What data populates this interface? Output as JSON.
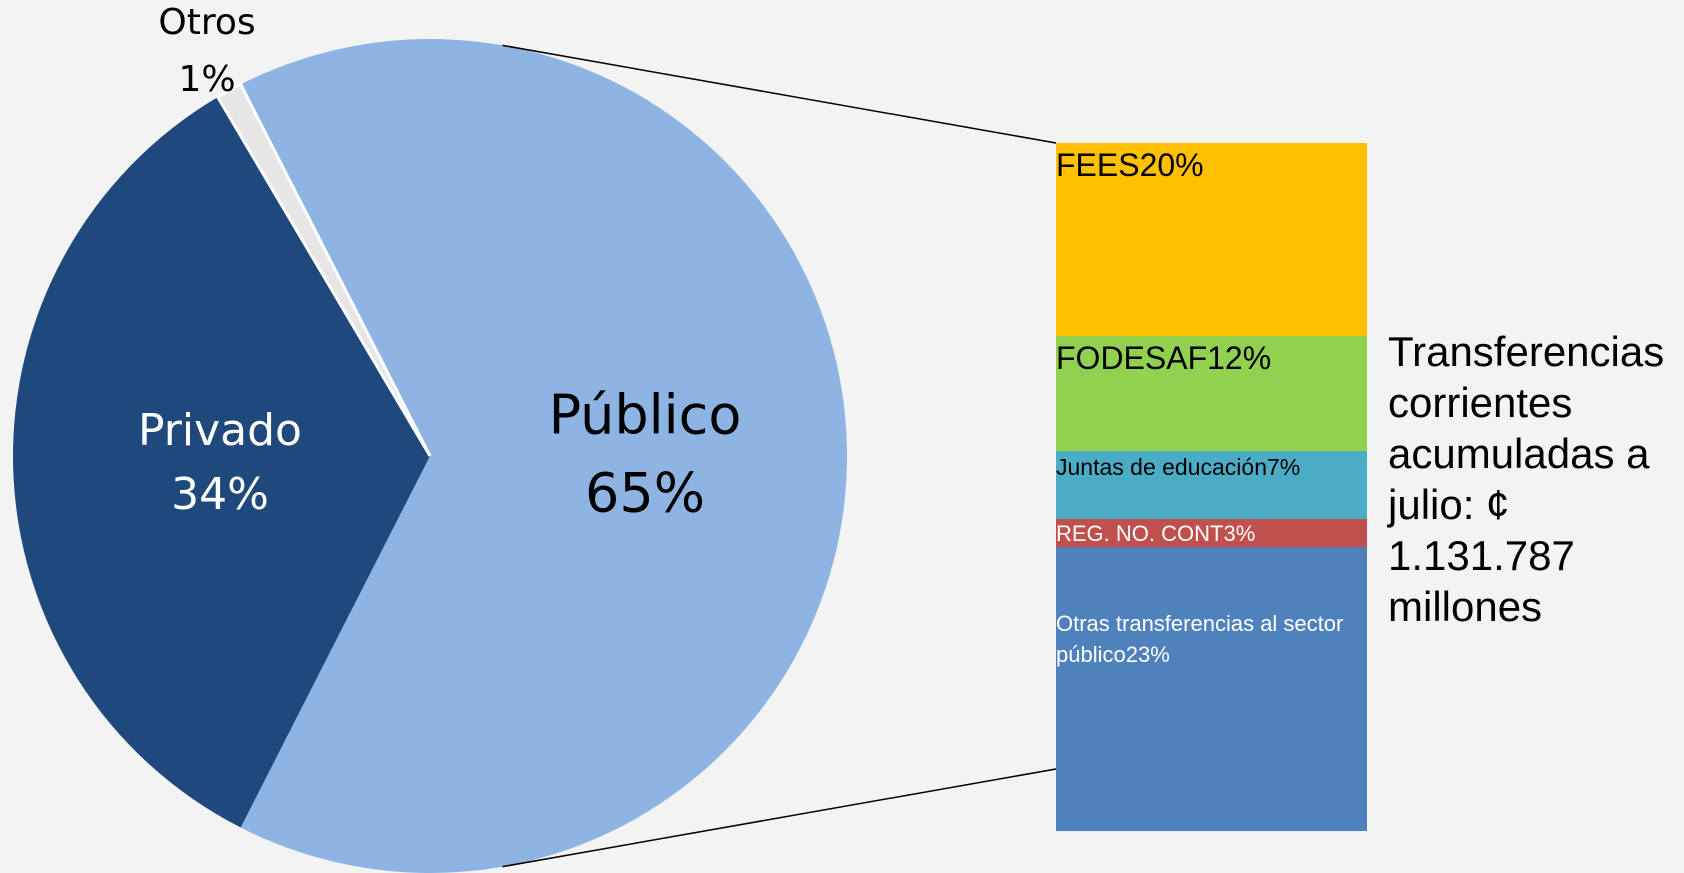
{
  "chart_data": [
    {
      "type": "pie",
      "categories": [
        "Público",
        "Privado",
        "Otros"
      ],
      "values": [
        65,
        34,
        1
      ],
      "value_labels": [
        "65%",
        "34%",
        "1%"
      ],
      "colors": [
        "#8eb4e3",
        "#1f497d",
        "#e6e6e6"
      ]
    },
    {
      "type": "bar",
      "stacked": true,
      "categories": [
        "FEES",
        "FODESAF",
        "Juntas de educación",
        "REG. NO. CONT",
        "Otras transferencias al sector público"
      ],
      "values": [
        20,
        12,
        7,
        3,
        23
      ],
      "value_labels": [
        "20%",
        "12%",
        "7%",
        "3%",
        "23%"
      ],
      "colors": [
        "#ffc000",
        "#92d050",
        "#4bacc6",
        "#c0504d",
        "#4f81bd"
      ],
      "annotation": "Transferencias corrientes acumuladas a julio: ¢ 1.131.787 millones"
    }
  ]
}
